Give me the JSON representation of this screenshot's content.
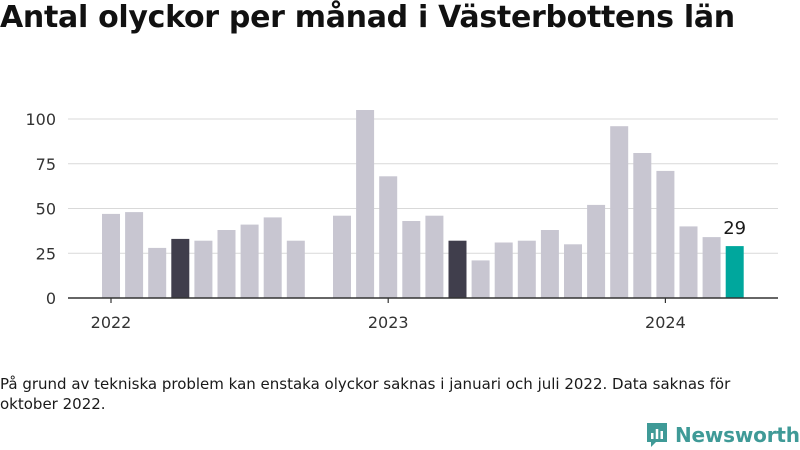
{
  "title": "Antal olyckor per månad i Västerbottens län",
  "footnote": "På grund av tekniska problem kan enstaka olyckor saknas i januari och juli 2022. Data saknas för oktober 2022.",
  "brand": {
    "name": "Newsworthy",
    "color": "#3f9a97",
    "icon": "bar-chart-bubble-icon"
  },
  "colors": {
    "bar_default": "#c8c6d1",
    "bar_dark": "#403e4c",
    "bar_highlight": "#00a79d",
    "grid": "#d9d9d9",
    "axis": "#333333"
  },
  "chart_data": {
    "type": "bar",
    "y_ticks": [
      0,
      25,
      50,
      75,
      100
    ],
    "ylim": [
      0,
      110
    ],
    "x_tick_labels": [
      "2022",
      "2023",
      "2024"
    ],
    "grid": true,
    "legend": "none",
    "series": [
      {
        "months": [
          "2022-01",
          "2022-02",
          "2022-03",
          "2022-04",
          "2022-05",
          "2022-06",
          "2022-07",
          "2022-08",
          "2022-09",
          "2022-10",
          "2022-11",
          "2022-12",
          "2023-01",
          "2023-02",
          "2023-03",
          "2023-04",
          "2023-05",
          "2023-06",
          "2023-07",
          "2023-08",
          "2023-09",
          "2023-10",
          "2023-11",
          "2023-12",
          "2024-01",
          "2024-02",
          "2024-03",
          "2024-04"
        ],
        "values": [
          47,
          48,
          28,
          33,
          32,
          38,
          41,
          45,
          32,
          null,
          46,
          105,
          68,
          43,
          46,
          32,
          21,
          31,
          32,
          38,
          30,
          52,
          96,
          81,
          71,
          40,
          34,
          29
        ],
        "dark_months": [
          "2022-04",
          "2023-04"
        ],
        "highlight_month": "2024-04"
      }
    ],
    "annotations": [
      {
        "month": "2024-04",
        "text": "29"
      }
    ]
  }
}
